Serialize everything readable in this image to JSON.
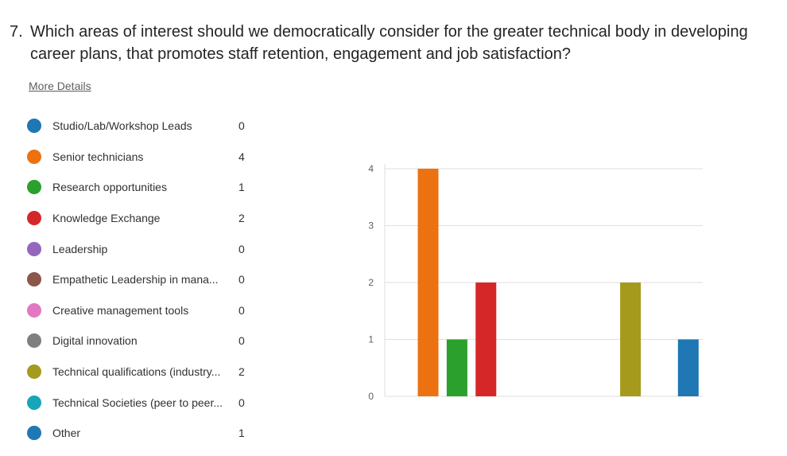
{
  "question": {
    "number": "7.",
    "text": "Which areas of interest should we democratically consider for the greater technical body in developing career plans, that promotes staff retention, engagement and job satisfaction?"
  },
  "more_details_label": "More Details",
  "legend": [
    {
      "label": "Studio/Lab/Workshop Leads",
      "count": "0",
      "color": "#1f77b4"
    },
    {
      "label": "Senior technicians",
      "count": "4",
      "color": "#ec7211"
    },
    {
      "label": "Research opportunities",
      "count": "1",
      "color": "#2ca02c"
    },
    {
      "label": "Knowledge Exchange",
      "count": "2",
      "color": "#d62728"
    },
    {
      "label": "Leadership",
      "count": "0",
      "color": "#9467bd"
    },
    {
      "label": "Empathetic Leadership in mana...",
      "count": "0",
      "color": "#8c564b"
    },
    {
      "label": "Creative management tools",
      "count": "0",
      "color": "#e377c2"
    },
    {
      "label": "Digital innovation",
      "count": "0",
      "color": "#7f7f7f"
    },
    {
      "label": "Technical qualifications (industry...",
      "count": "2",
      "color": "#a59a1c"
    },
    {
      "label": "Technical Societies (peer to peer...",
      "count": "0",
      "color": "#17a5b8"
    },
    {
      "label": "Other",
      "count": "1",
      "color": "#1f77b4"
    }
  ],
  "chart_data": {
    "type": "bar",
    "categories": [
      "Studio/Lab/Workshop Leads",
      "Senior technicians",
      "Research opportunities",
      "Knowledge Exchange",
      "Leadership",
      "Empathetic Leadership in mana...",
      "Creative management tools",
      "Digital innovation",
      "Technical qualifications (industry...",
      "Technical Societies (peer to peer...",
      "Other"
    ],
    "values": [
      0,
      4,
      1,
      2,
      0,
      0,
      0,
      0,
      2,
      0,
      1
    ],
    "colors": [
      "#1f77b4",
      "#ec7211",
      "#2ca02c",
      "#d62728",
      "#9467bd",
      "#8c564b",
      "#e377c2",
      "#7f7f7f",
      "#a59a1c",
      "#17a5b8",
      "#1f77b4"
    ],
    "yticks": [
      "0",
      "1",
      "2",
      "3",
      "4"
    ],
    "ylim": [
      0,
      4
    ],
    "grid": true,
    "legend": "left"
  }
}
